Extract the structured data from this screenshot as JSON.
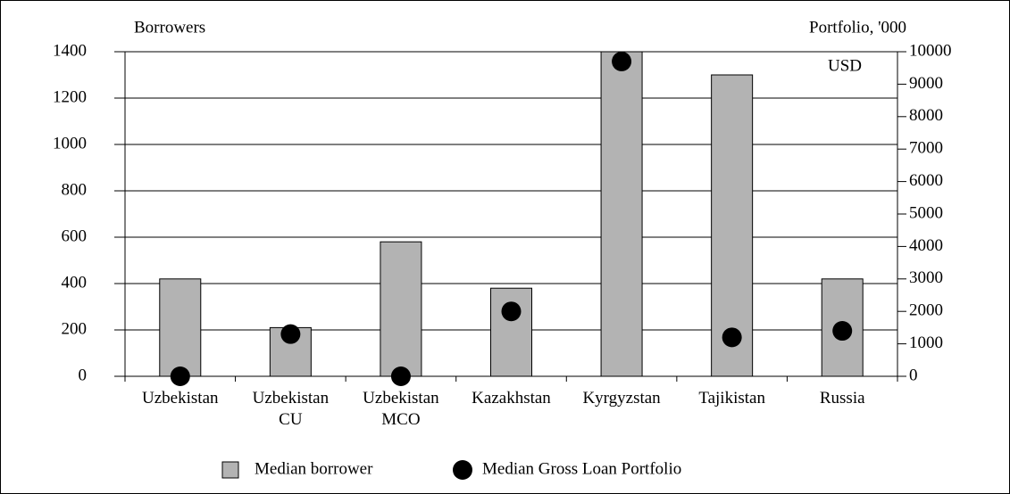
{
  "chart_data": {
    "type": "bar",
    "ylabel": "Borrowers",
    "y2label_lines": [
      "Portfolio, '000",
      "USD"
    ],
    "categories": [
      "Uzbekistan",
      "Uzbekistan\nCU",
      "Uzbekistan\nMCO",
      "Kazakhstan",
      "Kyrgyzstan",
      "Tajikistan",
      "Russia"
    ],
    "series": [
      {
        "name": "Median borrower",
        "color": "#b3b3b3",
        "type": "bar",
        "values": [
          420,
          210,
          580,
          380,
          1400,
          1300,
          420
        ]
      },
      {
        "name": "Median Gross Loan Portfolio",
        "color": "#000000",
        "type": "scatter",
        "axis": "y2",
        "values": [
          0,
          1300,
          0,
          2000,
          9700,
          1200,
          1400
        ]
      }
    ],
    "ylim": [
      0,
      1400
    ],
    "yticks": [
      0,
      200,
      400,
      600,
      800,
      1000,
      1200,
      1400
    ],
    "y2lim": [
      0,
      10000
    ],
    "y2ticks": [
      0,
      1000,
      2000,
      3000,
      4000,
      5000,
      6000,
      7000,
      8000,
      9000,
      10000
    ],
    "grid": true,
    "legend": "bottom"
  }
}
